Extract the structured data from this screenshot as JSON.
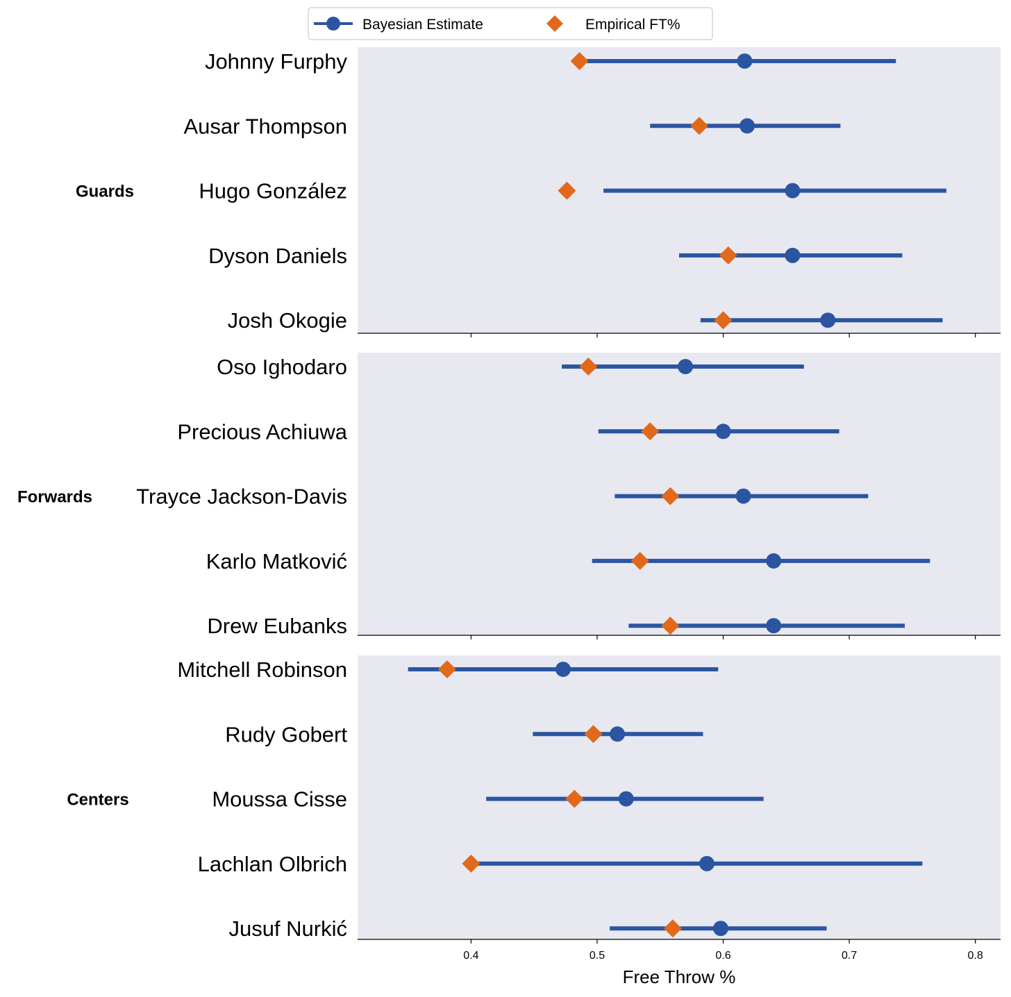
{
  "chart_data": {
    "type": "dot-interval",
    "xlabel": "Free Throw %",
    "xlim": [
      0.31,
      0.82
    ],
    "xticks": [
      0.4,
      0.5,
      0.6,
      0.7,
      0.8
    ],
    "xtick_labels": [
      "0.4",
      "0.5",
      "0.6",
      "0.7",
      "0.8"
    ],
    "legend": {
      "placement": "top-center",
      "bayesian_label": "Bayesian Estimate",
      "empirical_label": "Empirical FT%"
    },
    "colors": {
      "bayesian": "#2b55a0",
      "empirical": "#e0691c",
      "panel_bg": "#e8e8f0"
    },
    "groups": [
      {
        "name": "Guards",
        "players": [
          {
            "name": "Johnny Furphy",
            "bayesian": 0.617,
            "ci": [
              0.49,
              0.737
            ],
            "empirical": 0.486
          },
          {
            "name": "Ausar Thompson",
            "bayesian": 0.619,
            "ci": [
              0.542,
              0.693
            ],
            "empirical": 0.581
          },
          {
            "name": "Hugo González",
            "bayesian": 0.655,
            "ci": [
              0.505,
              0.777
            ],
            "empirical": 0.476
          },
          {
            "name": "Dyson Daniels",
            "bayesian": 0.655,
            "ci": [
              0.565,
              0.742
            ],
            "empirical": 0.604
          },
          {
            "name": "Josh Okogie",
            "bayesian": 0.683,
            "ci": [
              0.582,
              0.774
            ],
            "empirical": 0.6
          }
        ]
      },
      {
        "name": "Forwards",
        "players": [
          {
            "name": "Oso Ighodaro",
            "bayesian": 0.57,
            "ci": [
              0.472,
              0.664
            ],
            "empirical": 0.493
          },
          {
            "name": "Precious Achiuwa",
            "bayesian": 0.6,
            "ci": [
              0.501,
              0.692
            ],
            "empirical": 0.542
          },
          {
            "name": "Trayce Jackson-Davis",
            "bayesian": 0.616,
            "ci": [
              0.514,
              0.715
            ],
            "empirical": 0.558
          },
          {
            "name": "Karlo Matković",
            "bayesian": 0.64,
            "ci": [
              0.496,
              0.764
            ],
            "empirical": 0.534
          },
          {
            "name": "Drew Eubanks",
            "bayesian": 0.64,
            "ci": [
              0.525,
              0.744
            ],
            "empirical": 0.558
          }
        ]
      },
      {
        "name": "Centers",
        "players": [
          {
            "name": "Mitchell Robinson",
            "bayesian": 0.473,
            "ci": [
              0.35,
              0.596
            ],
            "empirical": 0.381
          },
          {
            "name": "Rudy Gobert",
            "bayesian": 0.516,
            "ci": [
              0.449,
              0.584
            ],
            "empirical": 0.497
          },
          {
            "name": "Moussa Cisse",
            "bayesian": 0.523,
            "ci": [
              0.412,
              0.632
            ],
            "empirical": 0.482
          },
          {
            "name": "Lachlan Olbrich",
            "bayesian": 0.587,
            "ci": [
              0.405,
              0.758
            ],
            "empirical": 0.4
          },
          {
            "name": "Jusuf Nurkić",
            "bayesian": 0.598,
            "ci": [
              0.51,
              0.682
            ],
            "empirical": 0.56
          }
        ]
      }
    ]
  }
}
